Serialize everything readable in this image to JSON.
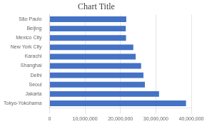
{
  "chart_data": {
    "type": "bar",
    "orientation": "horizontal",
    "title": "Chart Title",
    "categories": [
      "Tokyo-Yokohama",
      "Jakarta",
      "Seoul",
      "Delhi",
      "Shanghai",
      "Karachi",
      "New York City",
      "Mexico City",
      "Beijing",
      "São Paulo"
    ],
    "values": [
      38505000,
      30900000,
      26900000,
      26495000,
      25835000,
      24300000,
      23632000,
      21581000,
      21516000,
      21650000
    ],
    "color": "#4472C4",
    "xlim": [
      0,
      40000000
    ],
    "xticks": [
      0,
      {
        "value": 10000000,
        "label": "10,000,000"
      },
      {
        "value": 20000000,
        "label": "20,000,000"
      },
      {
        "value": 30000000,
        "label": "30,000,000"
      },
      {
        "value": 40000000,
        "label": "40,000,000"
      }
    ],
    "grid": true
  }
}
